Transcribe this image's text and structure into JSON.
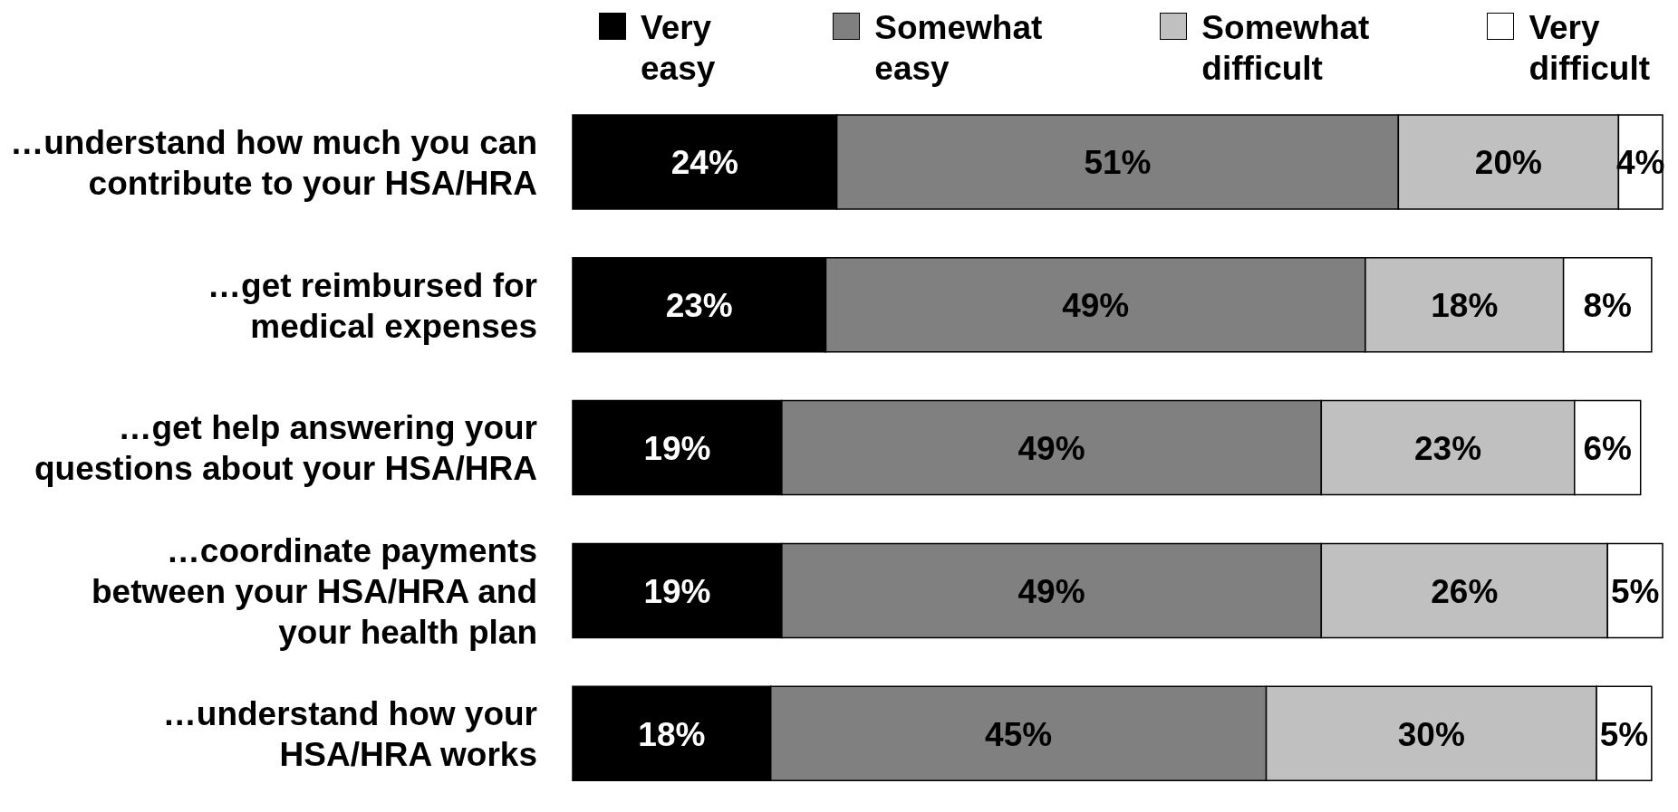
{
  "chart_data": {
    "type": "bar",
    "orientation": "horizontal",
    "stacked": true,
    "legend": "top",
    "categories": [
      "…understand how much you can\ncontribute to your HSA/HRA",
      "…get reimbursed for\nmedical expenses",
      "…get help answering your\nquestions about your HSA/HRA",
      "…coordinate payments\nbetween your HSA/HRA and\nyour health plan",
      "…understand how your\nHSA/HRA works"
    ],
    "series": [
      {
        "name": "Very easy",
        "color": "#000000",
        "values": [
          24,
          23,
          19,
          19,
          18
        ],
        "value_labels": [
          "24%",
          "23%",
          "19%",
          "19%",
          "18%"
        ]
      },
      {
        "name": "Somewhat easy",
        "color": "#808080",
        "values": [
          51,
          49,
          49,
          49,
          45
        ],
        "value_labels": [
          "51%",
          "49%",
          "49%",
          "49%",
          "45%"
        ]
      },
      {
        "name": "Somewhat difficult",
        "color": "#c0c0c0",
        "values": [
          20,
          18,
          23,
          26,
          30
        ],
        "value_labels": [
          "20%",
          "18%",
          "23%",
          "26%",
          "30%"
        ]
      },
      {
        "name": "Very difficult",
        "color": "#ffffff",
        "values": [
          4,
          8,
          6,
          5,
          5
        ],
        "value_labels": [
          "4%",
          "8%",
          "6%",
          "5%",
          "5%"
        ]
      }
    ]
  }
}
